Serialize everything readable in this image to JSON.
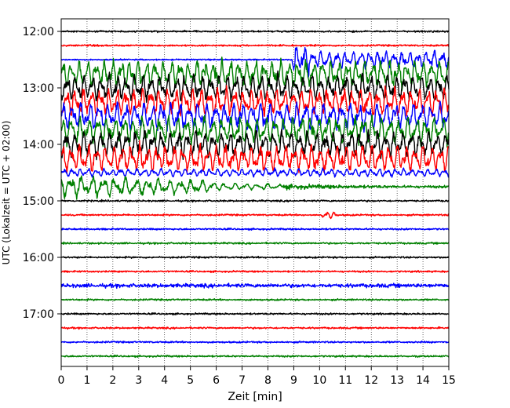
{
  "chart_data": {
    "type": "line",
    "title": "",
    "xlabel": "Zeit  [min]",
    "ylabel": "UTC (Lokalzeit = UTC + 02:00)",
    "xlim": [
      0,
      15
    ],
    "xticks": [
      0,
      1,
      2,
      3,
      4,
      5,
      6,
      7,
      8,
      9,
      10,
      11,
      12,
      13,
      14,
      15
    ],
    "xtick_labels": [
      "0",
      "1",
      "2",
      "3",
      "4",
      "5",
      "6",
      "7",
      "8",
      "9",
      "10",
      "11",
      "12",
      "13",
      "14",
      "15"
    ],
    "yaxis_inverted": true,
    "ytick_labels": [
      "12:00",
      "13:00",
      "14:00",
      "15:00",
      "16:00",
      "17:00"
    ],
    "ytick_hours": [
      12,
      13,
      14,
      15,
      16,
      17
    ],
    "trace_interval_minutes": 15,
    "grid": "vertical dotted lines at each minute",
    "color_cycle": [
      "#000000",
      "#ff0000",
      "#0000ff",
      "#008000"
    ],
    "traces": [
      {
        "start": "12:00",
        "color": "#000000",
        "activity": "quiet"
      },
      {
        "start": "12:15",
        "color": "#ff0000",
        "activity": "quiet"
      },
      {
        "start": "12:30",
        "color": "#0000ff",
        "activity": "strong from minute 9 onward"
      },
      {
        "start": "12:45",
        "color": "#008000",
        "activity": "strong oscillation"
      },
      {
        "start": "13:00",
        "color": "#000000",
        "activity": "strong oscillation"
      },
      {
        "start": "13:15",
        "color": "#ff0000",
        "activity": "strong oscillation"
      },
      {
        "start": "13:30",
        "color": "#0000ff",
        "activity": "strong oscillation"
      },
      {
        "start": "13:45",
        "color": "#008000",
        "activity": "strong oscillation"
      },
      {
        "start": "14:00",
        "color": "#000000",
        "activity": "strong oscillation"
      },
      {
        "start": "14:15",
        "color": "#ff0000",
        "activity": "strong oscillation"
      },
      {
        "start": "14:30",
        "color": "#0000ff",
        "activity": "moderate oscillation"
      },
      {
        "start": "14:45",
        "color": "#008000",
        "activity": "moderate, decaying"
      },
      {
        "start": "15:00",
        "color": "#000000",
        "activity": "quiet"
      },
      {
        "start": "15:15",
        "color": "#ff0000",
        "activity": "quiet, small event near minute 10.3"
      },
      {
        "start": "15:30",
        "color": "#0000ff",
        "activity": "quiet"
      },
      {
        "start": "15:45",
        "color": "#008000",
        "activity": "quiet"
      },
      {
        "start": "16:00",
        "color": "#000000",
        "activity": "quiet"
      },
      {
        "start": "16:15",
        "color": "#ff0000",
        "activity": "quiet"
      },
      {
        "start": "16:30",
        "color": "#0000ff",
        "activity": "slight oscillation"
      },
      {
        "start": "16:45",
        "color": "#008000",
        "activity": "quiet"
      },
      {
        "start": "17:00",
        "color": "#000000",
        "activity": "quiet"
      },
      {
        "start": "17:15",
        "color": "#ff0000",
        "activity": "quiet"
      },
      {
        "start": "17:30",
        "color": "#0000ff",
        "activity": "quiet"
      },
      {
        "start": "17:45",
        "color": "#008000",
        "activity": "quiet"
      }
    ]
  }
}
